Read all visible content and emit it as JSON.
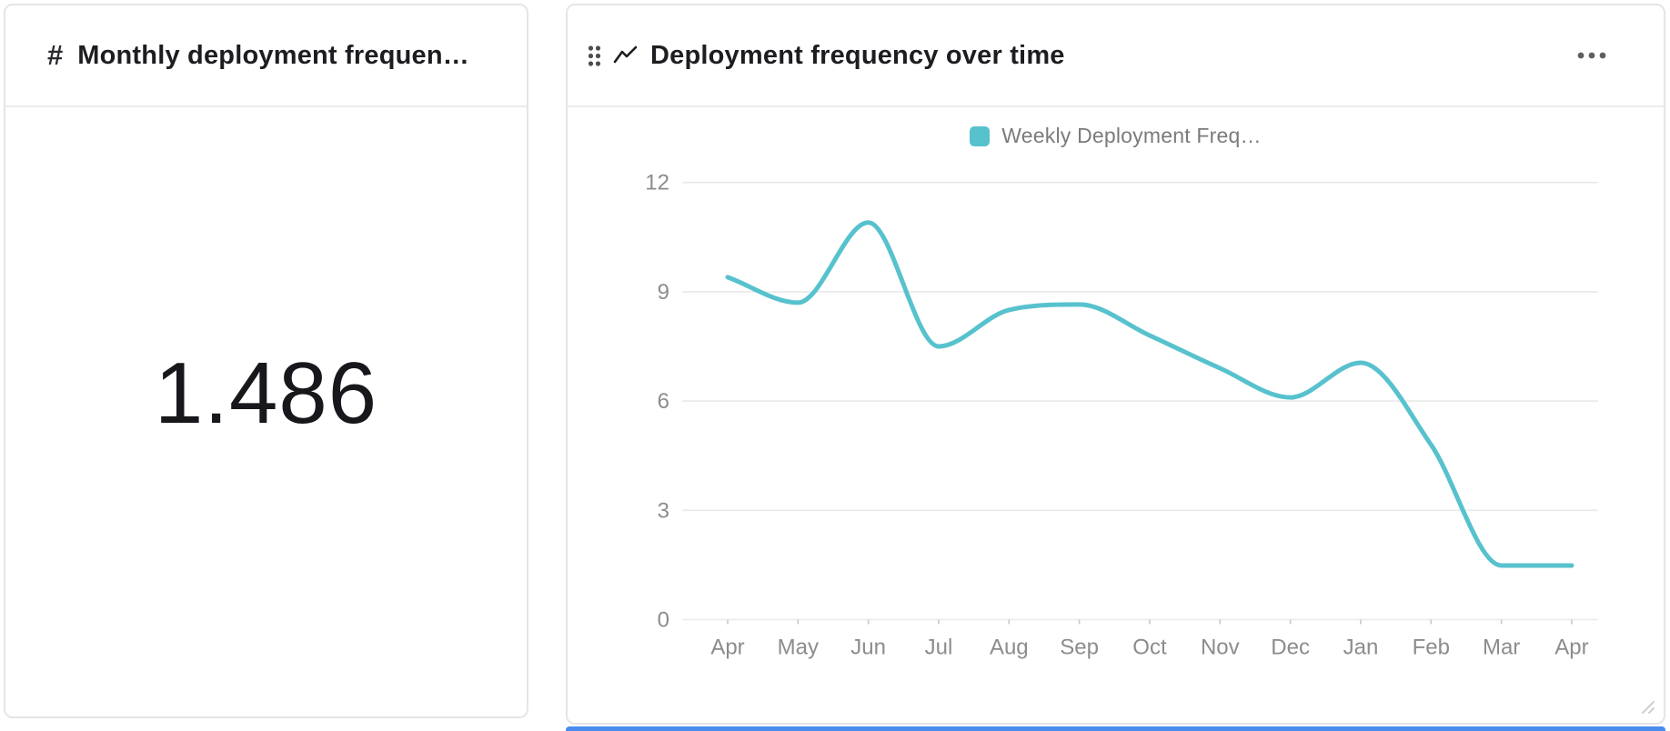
{
  "page": {
    "background": "#ffffff"
  },
  "left_card": {
    "icon": "#",
    "icon_name": "number-metric-icon",
    "title": "Monthly deployment frequen…",
    "value": "1.486"
  },
  "right_card": {
    "title": "Deployment frequency over time",
    "drag_handle_icon": "six-dot-grip",
    "header_icon": "trend-line-icon",
    "menu_icon": "ellipsis-menu"
  },
  "chart_data": {
    "type": "line",
    "title": "Deployment frequency over time",
    "categories": [
      "Apr",
      "May",
      "Jun",
      "Jul",
      "Aug",
      "Sep",
      "Oct",
      "Nov",
      "Dec",
      "Jan",
      "Feb",
      "Mar",
      "Apr"
    ],
    "series": [
      {
        "name": "Weekly Deployment Freq…",
        "color": "#57c2cd",
        "values": [
          9.4,
          8.7,
          10.9,
          7.5,
          8.5,
          8.65,
          7.8,
          6.9,
          6.1,
          7.05,
          4.8,
          1.486,
          1.486
        ]
      }
    ],
    "ylim": [
      0,
      12
    ],
    "yticks": [
      0,
      3,
      6,
      9,
      12
    ],
    "grid": true,
    "legend_position": "top",
    "smoothing": "monotone"
  },
  "colors": {
    "line": "#57c2cd",
    "axis_label": "#8c8c8c",
    "gridline": "#e9e9e9",
    "tick": "#c8c8c8",
    "title_text": "#1d1d21",
    "legend_text": "#7b7b7b",
    "card_border": "#e5e5e7",
    "icon_gray": "#4d4d4d",
    "bottom_accent": "#4a8cee",
    "resize_grip": "#cfcfcf"
  }
}
